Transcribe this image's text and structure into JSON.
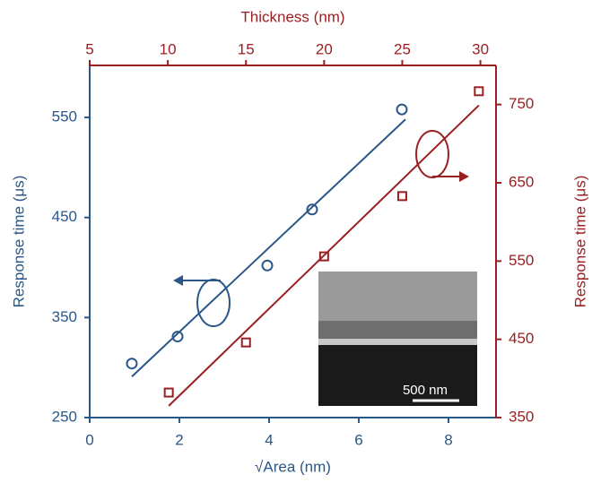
{
  "chart_data": {
    "type": "scatter",
    "xlabel": "√Area (nm)",
    "x2label": "Thickness (nm)",
    "ylabel": "Response time (μs)",
    "y2label": "Response time (μs)",
    "xlim": [
      0,
      9.06
    ],
    "xticks": [
      0,
      2,
      4,
      6,
      8
    ],
    "x2lim": [
      5,
      31
    ],
    "x2ticks": [
      5,
      10,
      15,
      20,
      25,
      30
    ],
    "ylim": [
      250,
      602
    ],
    "yticks": [
      250,
      350,
      450,
      550
    ],
    "y2lim": [
      350,
      800
    ],
    "y2ticks": [
      350,
      450,
      550,
      650,
      750
    ],
    "series": [
      {
        "color": "#2a5788",
        "marker": "circle",
        "xaxis": "x",
        "axis": "y",
        "x": [
          0.94,
          1.96,
          3.96,
          4.96,
          6.96
        ],
        "values": [
          304,
          331,
          402,
          458,
          558
        ],
        "fit": {
          "x": [
            0.94,
            7.04
          ],
          "values": [
            291,
            548
          ]
        }
      },
      {
        "color": "#9a1f22",
        "marker": "square",
        "xaxis": "x2",
        "axis": "y2",
        "x": [
          10.06,
          15,
          20,
          25,
          29.9
        ],
        "values": [
          382,
          446,
          556,
          633,
          767
        ],
        "fit": {
          "x": [
            10.06,
            29.9
          ],
          "values": [
            365,
            749
          ]
        }
      }
    ],
    "inset_label": "500 nm"
  }
}
